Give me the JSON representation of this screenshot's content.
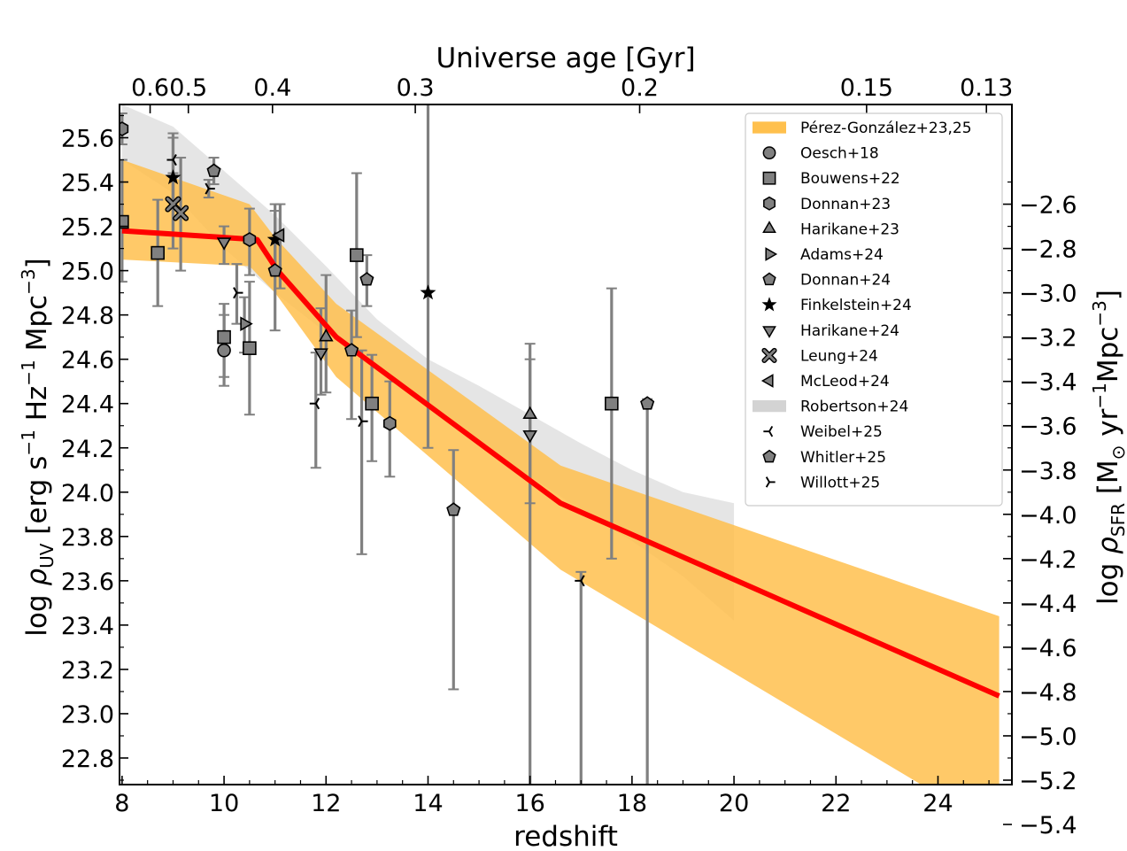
{
  "chart_data": {
    "type": "line",
    "xlabel": "redshift",
    "ylabel_left": "log ρ_UV [erg s^-1 Hz^-1 Mpc^-3]",
    "ylabel_right": "log ρ_SFR [M_⊙ yr^-1 Mpc^-3]",
    "top_axis_title": "Universe age [Gyr]",
    "xlim": [
      7.95,
      25.45
    ],
    "ylim": [
      22.68,
      25.75
    ],
    "xticks": [
      8,
      10,
      12,
      14,
      16,
      18,
      20,
      22,
      24
    ],
    "yticks_left": [
      22.8,
      23.0,
      23.2,
      23.4,
      23.6,
      23.8,
      24.0,
      24.2,
      24.4,
      24.6,
      24.8,
      25.0,
      25.2,
      25.4,
      25.6
    ],
    "yticks_left_labels": [
      "22.8",
      "23.0",
      "23.2",
      "23.4",
      "23.6",
      "23.8",
      "24.0",
      "24.2",
      "24.4",
      "24.6",
      "24.8",
      "25.0",
      "25.2",
      "25.4",
      "25.6"
    ],
    "right_axis_offset": -27.9,
    "yticks_right": [
      -5.4,
      -5.2,
      -5.0,
      -4.8,
      -4.6,
      -4.4,
      -4.2,
      -4.0,
      -3.8,
      -3.6,
      -3.4,
      -3.2,
      -3.0,
      -2.8,
      -2.6
    ],
    "yticks_right_labels": [
      "−5.4",
      "−5.2",
      "−5.0",
      "−4.8",
      "−4.6",
      "−4.4",
      "−4.2",
      "−4.0",
      "−3.8",
      "−3.6",
      "−3.4",
      "−3.2",
      "−3.0",
      "−2.8",
      "−2.6"
    ],
    "top_ticks": [
      {
        "label": "0.6",
        "z": 8.55
      },
      {
        "label": "0.5",
        "z": 9.3
      },
      {
        "label": "0.4",
        "z": 10.95
      },
      {
        "label": "0.3",
        "z": 13.75
      },
      {
        "label": "0.2",
        "z": 18.15
      },
      {
        "label": "0.15",
        "z": 22.6
      },
      {
        "label": "0.13",
        "z": 24.95
      }
    ],
    "colors": {
      "model_line": "#ff0000",
      "perez_band": "#ffc04d",
      "robertson_band": "#d3d3d3",
      "marker_fill": "#808080",
      "errorbar": "#808080"
    },
    "model_line": {
      "x": [
        8.0,
        10.65,
        11.05,
        12.2,
        16.6,
        25.2
      ],
      "y": [
        25.18,
        25.14,
        25.0,
        24.7,
        23.95,
        23.08
      ]
    },
    "perez_band": {
      "x": [
        8.0,
        10.5,
        11.0,
        12.2,
        16.6,
        25.2
      ],
      "upper": [
        25.5,
        25.3,
        25.15,
        24.85,
        24.12,
        23.44
      ],
      "lower": [
        25.05,
        25.02,
        24.9,
        24.52,
        23.65,
        22.47
      ]
    },
    "robertson_band": {
      "x": [
        8.0,
        9.0,
        10.0,
        11.0,
        12.0,
        13.0,
        14.0,
        15.0,
        16.0,
        17.0,
        18.0,
        19.0,
        20.0
      ],
      "upper": [
        25.75,
        25.65,
        25.45,
        25.25,
        25.02,
        24.78,
        24.6,
        24.48,
        24.35,
        24.22,
        24.1,
        24.0,
        23.95
      ],
      "lower": [
        25.5,
        25.35,
        25.1,
        24.9,
        24.72,
        24.55,
        24.38,
        24.22,
        24.07,
        23.92,
        23.78,
        23.62,
        23.42
      ]
    },
    "legend_placement": "top-right",
    "legend": [
      {
        "name": "Pérez-González+23,25",
        "marker": "band-orange"
      },
      {
        "name": "Oesch+18",
        "marker": "circle"
      },
      {
        "name": "Bouwens+22",
        "marker": "square"
      },
      {
        "name": "Donnan+23",
        "marker": "hexagon"
      },
      {
        "name": "Harikane+23",
        "marker": "triangle-up"
      },
      {
        "name": "Adams+24",
        "marker": "triangle-right"
      },
      {
        "name": "Donnan+24",
        "marker": "pentagon"
      },
      {
        "name": "Finkelstein+24",
        "marker": "star"
      },
      {
        "name": "Harikane+24",
        "marker": "triangle-down"
      },
      {
        "name": "Leung+24",
        "marker": "x-filled"
      },
      {
        "name": "McLeod+24",
        "marker": "triangle-left"
      },
      {
        "name": "Robertson+24",
        "marker": "band-grey"
      },
      {
        "name": "Weibel+25",
        "marker": "tri-left"
      },
      {
        "name": "Whitler+25",
        "marker": "pentagon"
      },
      {
        "name": "Willott+25",
        "marker": "tri-right"
      }
    ],
    "points": [
      {
        "series": "Oesch+18",
        "marker": "circle",
        "x": 10.0,
        "y": 24.64,
        "lo": 24.48,
        "hi": 24.8
      },
      {
        "series": "Bouwens+22",
        "marker": "square",
        "x": 8.0,
        "y": 25.22,
        "lo": 24.95,
        "hi": 25.5
      },
      {
        "series": "Bouwens+22",
        "marker": "square",
        "x": 8.7,
        "y": 25.08,
        "lo": 24.84,
        "hi": 25.32
      },
      {
        "series": "Bouwens+22",
        "marker": "square",
        "x": 10.0,
        "y": 24.7,
        "lo": 24.52,
        "hi": 24.85
      },
      {
        "series": "Bouwens+22",
        "marker": "square",
        "x": 10.5,
        "y": 24.65,
        "lo": 24.35,
        "hi": 24.95
      },
      {
        "series": "Bouwens+22",
        "marker": "square",
        "x": 12.6,
        "y": 25.07,
        "lo": 24.7,
        "hi": 25.44
      },
      {
        "series": "Bouwens+22",
        "marker": "square",
        "x": 12.9,
        "y": 24.4,
        "lo": 24.14,
        "hi": 24.62
      },
      {
        "series": "Bouwens+22",
        "marker": "square",
        "x": 17.6,
        "y": 24.4,
        "lo": 23.7,
        "hi": 24.92
      },
      {
        "series": "Donnan+23",
        "marker": "hexagon",
        "x": 8.0,
        "y": 25.64,
        "lo": 25.57,
        "hi": 25.71
      },
      {
        "series": "Donnan+23",
        "marker": "hexagon",
        "x": 10.5,
        "y": 25.14,
        "lo": 24.98,
        "hi": 25.28
      },
      {
        "series": "Donnan+23",
        "marker": "hexagon",
        "x": 13.25,
        "y": 24.31,
        "lo": 24.07,
        "hi": 24.5
      },
      {
        "series": "Harikane+23",
        "marker": "triangle-up",
        "x": 12.0,
        "y": 24.7,
        "lo": 24.45,
        "hi": 24.98
      },
      {
        "series": "Harikane+23",
        "marker": "triangle-up",
        "x": 16.0,
        "y": 24.35,
        "lo": 23.95,
        "hi": 24.6
      },
      {
        "series": "Adams+24",
        "marker": "triangle-right",
        "x": 10.4,
        "y": 24.76,
        "lo": 24.63,
        "hi": 24.88
      },
      {
        "series": "Donnan+24",
        "marker": "pentagon",
        "x": 9.8,
        "y": 25.45,
        "lo": 25.39,
        "hi": 25.51
      },
      {
        "series": "Donnan+24",
        "marker": "pentagon",
        "x": 11.0,
        "y": 25.0,
        "lo": 24.73,
        "hi": 25.27
      },
      {
        "series": "Donnan+24",
        "marker": "pentagon",
        "x": 12.8,
        "y": 24.96,
        "lo": 24.84,
        "hi": 25.07
      },
      {
        "series": "Donnan+24",
        "marker": "pentagon",
        "x": 14.5,
        "y": 23.92,
        "lo": 23.11,
        "hi": 24.19
      },
      {
        "series": "Finkelstein+24",
        "marker": "star",
        "x": 9.0,
        "y": 25.42,
        "lo": 25.1,
        "hi": 25.62
      },
      {
        "series": "Finkelstein+24",
        "marker": "star",
        "x": 11.0,
        "y": 25.14,
        "lo": 24.98,
        "hi": 25.3
      },
      {
        "series": "Finkelstein+24",
        "marker": "star",
        "x": 14.0,
        "y": 24.9,
        "lo": 24.2,
        "hi": 25.75
      },
      {
        "series": "Harikane+24",
        "marker": "triangle-down",
        "x": 10.0,
        "y": 25.13,
        "lo": 25.03,
        "hi": 25.2
      },
      {
        "series": "Harikane+24",
        "marker": "triangle-down",
        "x": 11.9,
        "y": 24.63,
        "lo": 24.44,
        "hi": 24.83
      },
      {
        "series": "Harikane+24",
        "marker": "triangle-down",
        "x": 16.0,
        "y": 24.26,
        "lo": 22.68,
        "hi": 24.67
      },
      {
        "series": "Leung+24",
        "marker": "x-filled",
        "x": 9.0,
        "y": 25.3,
        "lo": 25.16,
        "hi": 25.44
      },
      {
        "series": "Leung+24",
        "marker": "x-filled",
        "x": 9.15,
        "y": 25.26,
        "lo": 25.0,
        "hi": 25.51
      },
      {
        "series": "McLeod+24",
        "marker": "triangle-left",
        "x": 11.1,
        "y": 25.16,
        "lo": 24.92,
        "hi": 25.3
      },
      {
        "series": "Weibel+25",
        "marker": "tri-left",
        "x": 9.0,
        "y": 25.5,
        "lo": 25.32,
        "hi": 25.6
      },
      {
        "series": "Weibel+25",
        "marker": "tri-left",
        "x": 11.8,
        "y": 24.4,
        "lo": 24.11,
        "hi": 24.63
      },
      {
        "series": "Weibel+25",
        "marker": "tri-left",
        "x": 17.0,
        "y": 23.6,
        "lo": 22.68,
        "hi": 23.64
      },
      {
        "series": "Whitler+25",
        "marker": "pentagon",
        "x": 12.5,
        "y": 24.64,
        "lo": 24.33,
        "hi": 24.82
      },
      {
        "series": "Whitler+25",
        "marker": "pentagon",
        "x": 18.3,
        "y": 24.4,
        "lo": 22.68,
        "hi": 24.42
      },
      {
        "series": "Willott+25",
        "marker": "tri-right",
        "x": 9.7,
        "y": 25.37,
        "lo": 25.33,
        "hi": 25.41
      },
      {
        "series": "Willott+25",
        "marker": "tri-right",
        "x": 10.25,
        "y": 24.9,
        "lo": 24.76,
        "hi": 25.03
      },
      {
        "series": "Willott+25",
        "marker": "tri-right",
        "x": 12.7,
        "y": 24.32,
        "lo": 23.72,
        "hi": 24.64
      }
    ]
  }
}
